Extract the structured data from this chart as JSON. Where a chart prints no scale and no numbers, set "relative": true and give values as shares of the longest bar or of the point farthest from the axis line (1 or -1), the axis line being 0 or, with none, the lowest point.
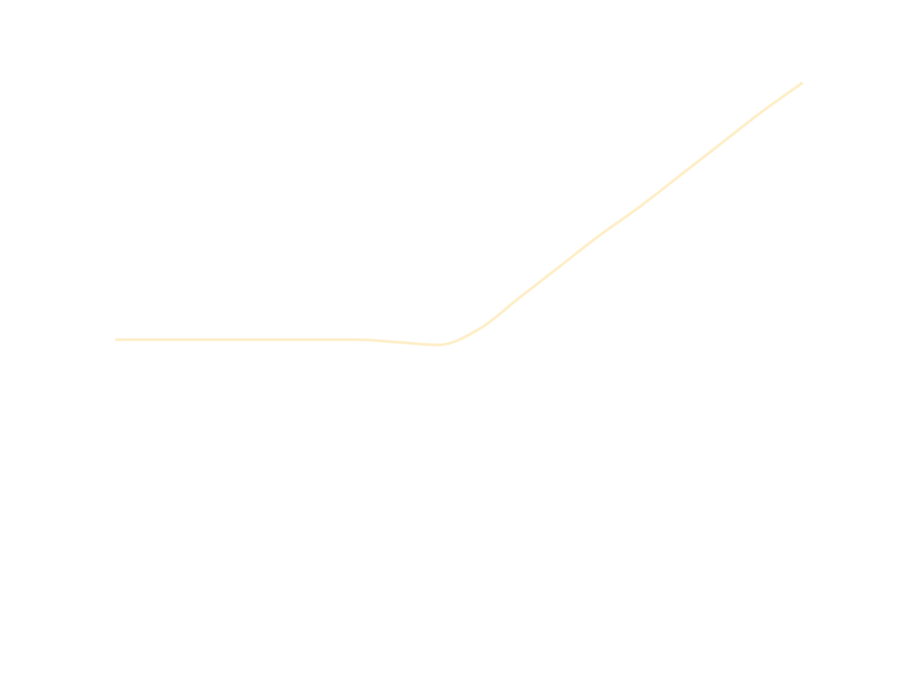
{
  "chart_data": {
    "type": "line",
    "relative": true,
    "grid": false,
    "legend": false,
    "tick_labels": false,
    "marker": "none",
    "line_style": "solid",
    "categories": [
      null,
      null,
      null,
      null,
      null,
      null,
      null,
      null,
      null,
      null,
      null,
      null,
      null,
      null,
      null,
      null,
      null,
      null
    ],
    "series": [
      {
        "color": "#feefc9",
        "values": [
          0.02,
          0.02,
          0.02,
          0.02,
          0.02,
          0.02,
          0.02,
          0.01,
          0,
          0.06,
          0.18,
          0.3,
          0.42,
          0.53,
          0.65,
          0.77,
          0.89,
          1
        ]
      }
    ]
  }
}
